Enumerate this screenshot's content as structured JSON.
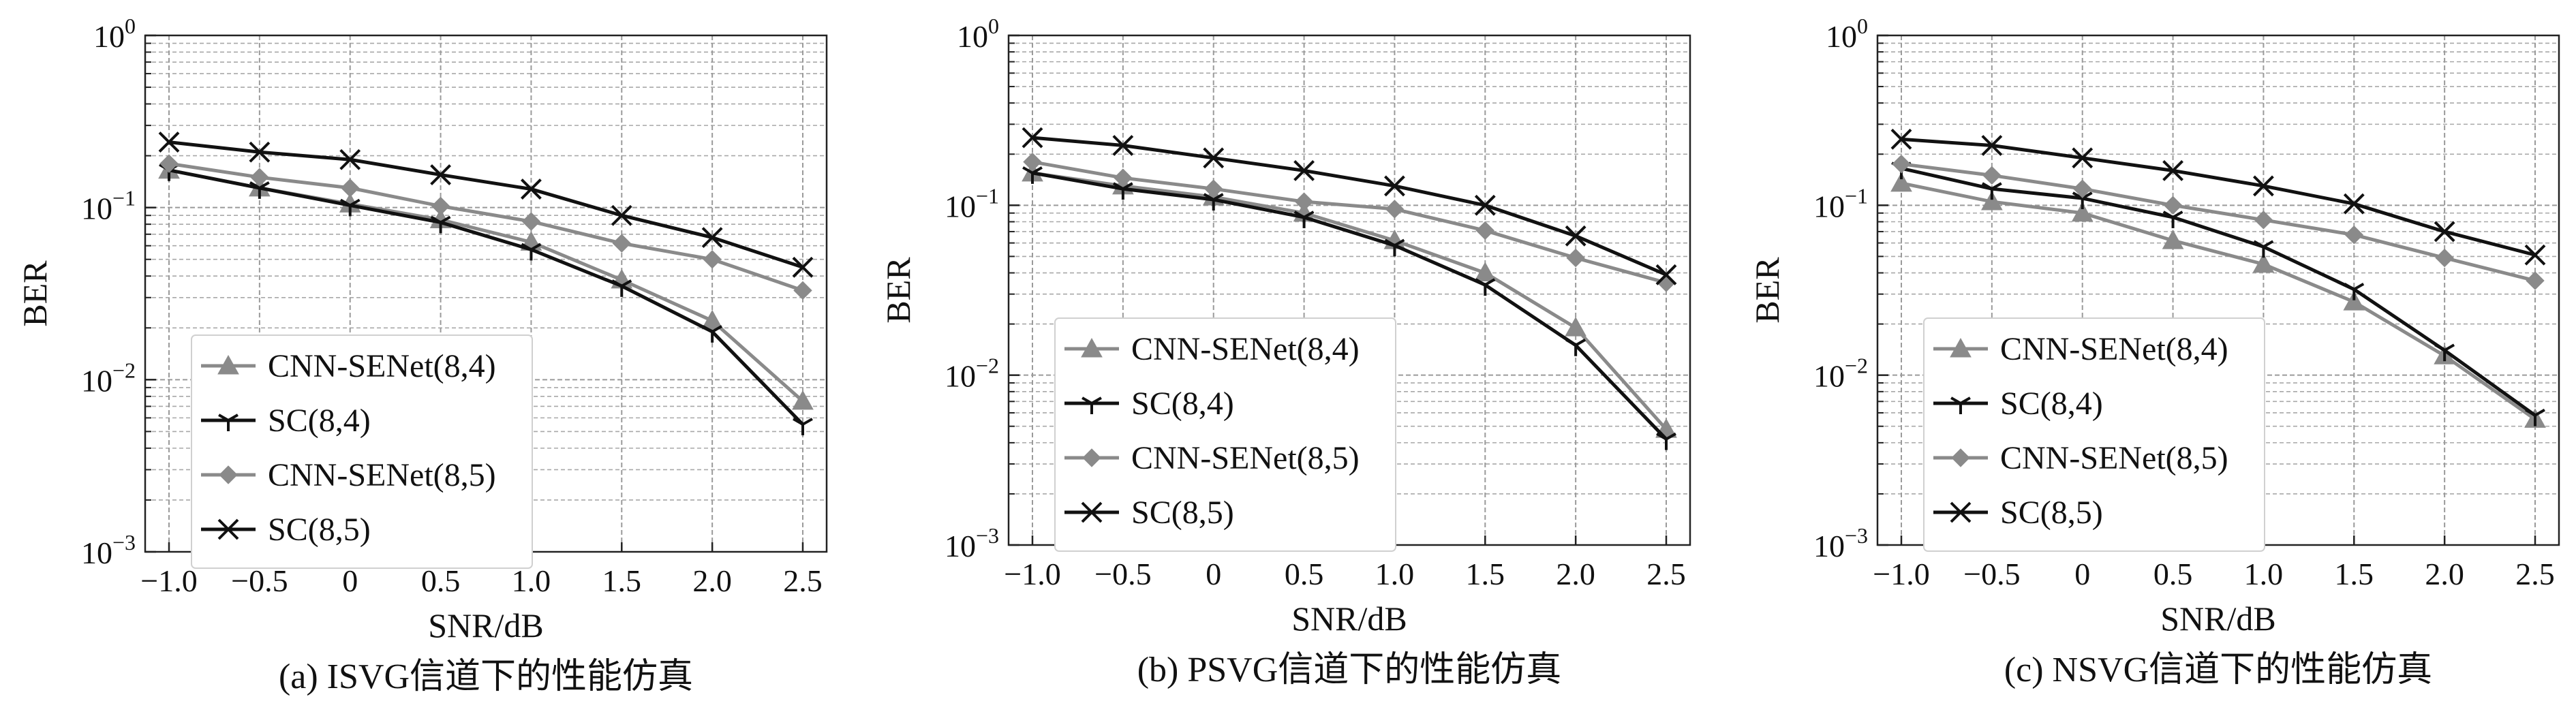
{
  "chart_data": [
    {
      "type": "line",
      "caption": "(a) ISVG信道下的性能仿真",
      "xlabel": "SNR/dB",
      "ylabel": "BER",
      "yscale": "log",
      "xlim": [
        -1.0,
        2.5
      ],
      "ylim": [
        0.001,
        1
      ],
      "x": [
        -1.0,
        -0.5,
        0,
        0.5,
        1.0,
        1.5,
        2.0,
        2.5
      ],
      "x_tick_labels": [
        "−1.0",
        "−0.5",
        "0",
        "0.5",
        "1.0",
        "1.5",
        "2.0",
        "2.5"
      ],
      "y_tick_labels": [
        {
          "base": "10",
          "exp": "0"
        },
        {
          "base": "10",
          "exp": "−1"
        },
        {
          "base": "10",
          "exp": "−2"
        },
        {
          "base": "10",
          "exp": "−3"
        }
      ],
      "grid": true,
      "legend_position": "lower-left",
      "series": [
        {
          "name": "CNN-SENet(8,4)",
          "marker": "triangle",
          "color": "#8a8a8a",
          "values": [
            0.165,
            0.13,
            0.105,
            0.085,
            0.063,
            0.038,
            0.022,
            0.0075
          ]
        },
        {
          "name": "SC(8,4)",
          "marker": "tri-down",
          "color": "#111111",
          "values": [
            0.165,
            0.13,
            0.103,
            0.082,
            0.057,
            0.035,
            0.019,
            0.0055
          ]
        },
        {
          "name": "CNN-SENet(8,5)",
          "marker": "diamond",
          "color": "#8a8a8a",
          "values": [
            0.18,
            0.15,
            0.13,
            0.102,
            0.083,
            0.062,
            0.05,
            0.033
          ]
        },
        {
          "name": "SC(8,5)",
          "marker": "x",
          "color": "#111111",
          "values": [
            0.24,
            0.21,
            0.19,
            0.155,
            0.128,
            0.09,
            0.067,
            0.045
          ]
        }
      ]
    },
    {
      "type": "line",
      "caption": "(b) PSVG信道下的性能仿真",
      "xlabel": "SNR/dB",
      "ylabel": "BER",
      "yscale": "log",
      "xlim": [
        -1.0,
        2.5
      ],
      "ylim": [
        0.001,
        1
      ],
      "x": [
        -1.0,
        -0.5,
        0,
        0.5,
        1.0,
        1.5,
        2.0,
        2.5
      ],
      "x_tick_labels": [
        "−1.0",
        "−0.5",
        "0",
        "0.5",
        "1.0",
        "1.5",
        "2.0",
        "2.5"
      ],
      "y_tick_labels": [
        {
          "base": "10",
          "exp": "0"
        },
        {
          "base": "10",
          "exp": "−1"
        },
        {
          "base": "10",
          "exp": "−2"
        },
        {
          "base": "10",
          "exp": "−3"
        }
      ],
      "grid": true,
      "legend_position": "lower-left",
      "series": [
        {
          "name": "CNN-SENet(8,4)",
          "marker": "triangle",
          "color": "#8a8a8a",
          "values": [
            0.155,
            0.13,
            0.112,
            0.09,
            0.062,
            0.04,
            0.019,
            0.0048
          ]
        },
        {
          "name": "SC(8,4)",
          "marker": "tri-down",
          "color": "#111111",
          "values": [
            0.155,
            0.125,
            0.108,
            0.085,
            0.058,
            0.034,
            0.015,
            0.0042
          ]
        },
        {
          "name": "CNN-SENet(8,5)",
          "marker": "diamond",
          "color": "#8a8a8a",
          "values": [
            0.18,
            0.145,
            0.125,
            0.105,
            0.095,
            0.071,
            0.049,
            0.035
          ]
        },
        {
          "name": "SC(8,5)",
          "marker": "x",
          "color": "#111111",
          "values": [
            0.25,
            0.225,
            0.19,
            0.16,
            0.13,
            0.1,
            0.066,
            0.039
          ]
        }
      ]
    },
    {
      "type": "line",
      "caption": "(c) NSVG信道下的性能仿真",
      "xlabel": "SNR/dB",
      "ylabel": "BER",
      "yscale": "log",
      "xlim": [
        -1.0,
        2.5
      ],
      "ylim": [
        0.001,
        1
      ],
      "x": [
        -1.0,
        -0.5,
        0,
        0.5,
        1.0,
        1.5,
        2.0,
        2.5
      ],
      "x_tick_labels": [
        "−1.0",
        "−0.5",
        "0",
        "0.5",
        "1.0",
        "1.5",
        "2.0",
        "2.5"
      ],
      "y_tick_labels": [
        {
          "base": "10",
          "exp": "0"
        },
        {
          "base": "10",
          "exp": "−1"
        },
        {
          "base": "10",
          "exp": "−2"
        },
        {
          "base": "10",
          "exp": "−3"
        }
      ],
      "grid": true,
      "legend_position": "lower-left",
      "series": [
        {
          "name": "CNN-SENet(8,4)",
          "marker": "triangle",
          "color": "#8a8a8a",
          "values": [
            0.135,
            0.105,
            0.09,
            0.062,
            0.045,
            0.027,
            0.013,
            0.0055
          ]
        },
        {
          "name": "SC(8,4)",
          "marker": "tri-down",
          "color": "#111111",
          "values": [
            0.165,
            0.125,
            0.11,
            0.085,
            0.057,
            0.032,
            0.014,
            0.0058
          ]
        },
        {
          "name": "CNN-SENet(8,5)",
          "marker": "diamond",
          "color": "#8a8a8a",
          "values": [
            0.175,
            0.15,
            0.125,
            0.1,
            0.082,
            0.067,
            0.049,
            0.036
          ]
        },
        {
          "name": "SC(8,5)",
          "marker": "x",
          "color": "#111111",
          "values": [
            0.245,
            0.225,
            0.19,
            0.16,
            0.13,
            0.102,
            0.07,
            0.051
          ]
        }
      ]
    }
  ]
}
